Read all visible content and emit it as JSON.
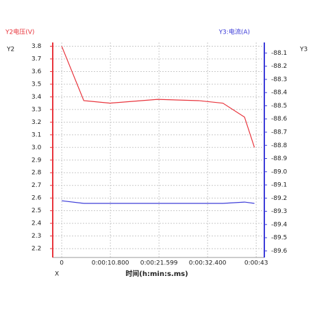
{
  "chart_data": {
    "type": "line",
    "y_title": "Y2电压(V)",
    "y2_title": "Y3:电流(A)",
    "y_axis_name": "Y2",
    "y2_axis_name": "Y3",
    "x_axis_name": "X",
    "x_title": "时间(h:min:s.ms)",
    "x": [
      0,
      4.9,
      10.7,
      21.3,
      30.4,
      35.8,
      40.6,
      42.8
    ],
    "series": [
      {
        "name": "Y2电压(V)",
        "color": "#e8323a",
        "values": [
          3.8,
          3.37,
          3.35,
          3.38,
          3.37,
          3.35,
          3.24,
          3.0
        ]
      },
      {
        "name": "Y3:电流(A)",
        "color": "#3a3ad8",
        "axis": "y2",
        "values": [
          -89.22,
          -89.24,
          -89.24,
          -89.24,
          -89.24,
          -89.24,
          -89.23,
          -89.24
        ]
      }
    ],
    "xlim": [
      -2,
      45
    ],
    "xticks": [
      {
        "value": 0,
        "label": "0"
      },
      {
        "value": 10.8,
        "label": "0:00:10.800"
      },
      {
        "value": 21.599,
        "label": "0:00:21.599"
      },
      {
        "value": 32.4,
        "label": "0:00:32.400"
      },
      {
        "value": 43.2,
        "label": "0:00:43"
      }
    ],
    "ylim": [
      2.13,
      3.83
    ],
    "yticks": [
      2.2,
      2.3,
      2.4,
      2.5,
      2.6,
      2.7,
      2.8,
      2.9,
      {
        "value": 3,
        "label": "3.0"
      },
      3.1,
      3.2,
      3.3,
      3.4,
      3.5,
      3.6,
      3.7,
      3.8
    ],
    "y2lim": [
      -89.65,
      -88.02
    ],
    "y2ticks": [
      -88.1,
      -88.2,
      -88.3,
      -88.4,
      -88.5,
      -88.6,
      -88.7,
      -88.8,
      -88.9,
      {
        "value": -89,
        "label": "-89.0"
      },
      -89.1,
      -89.2,
      -89.3,
      -89.4,
      -89.5,
      -89.6
    ],
    "y_color": "#e8323a",
    "y2_color": "#3a3ad8",
    "grid": true
  }
}
